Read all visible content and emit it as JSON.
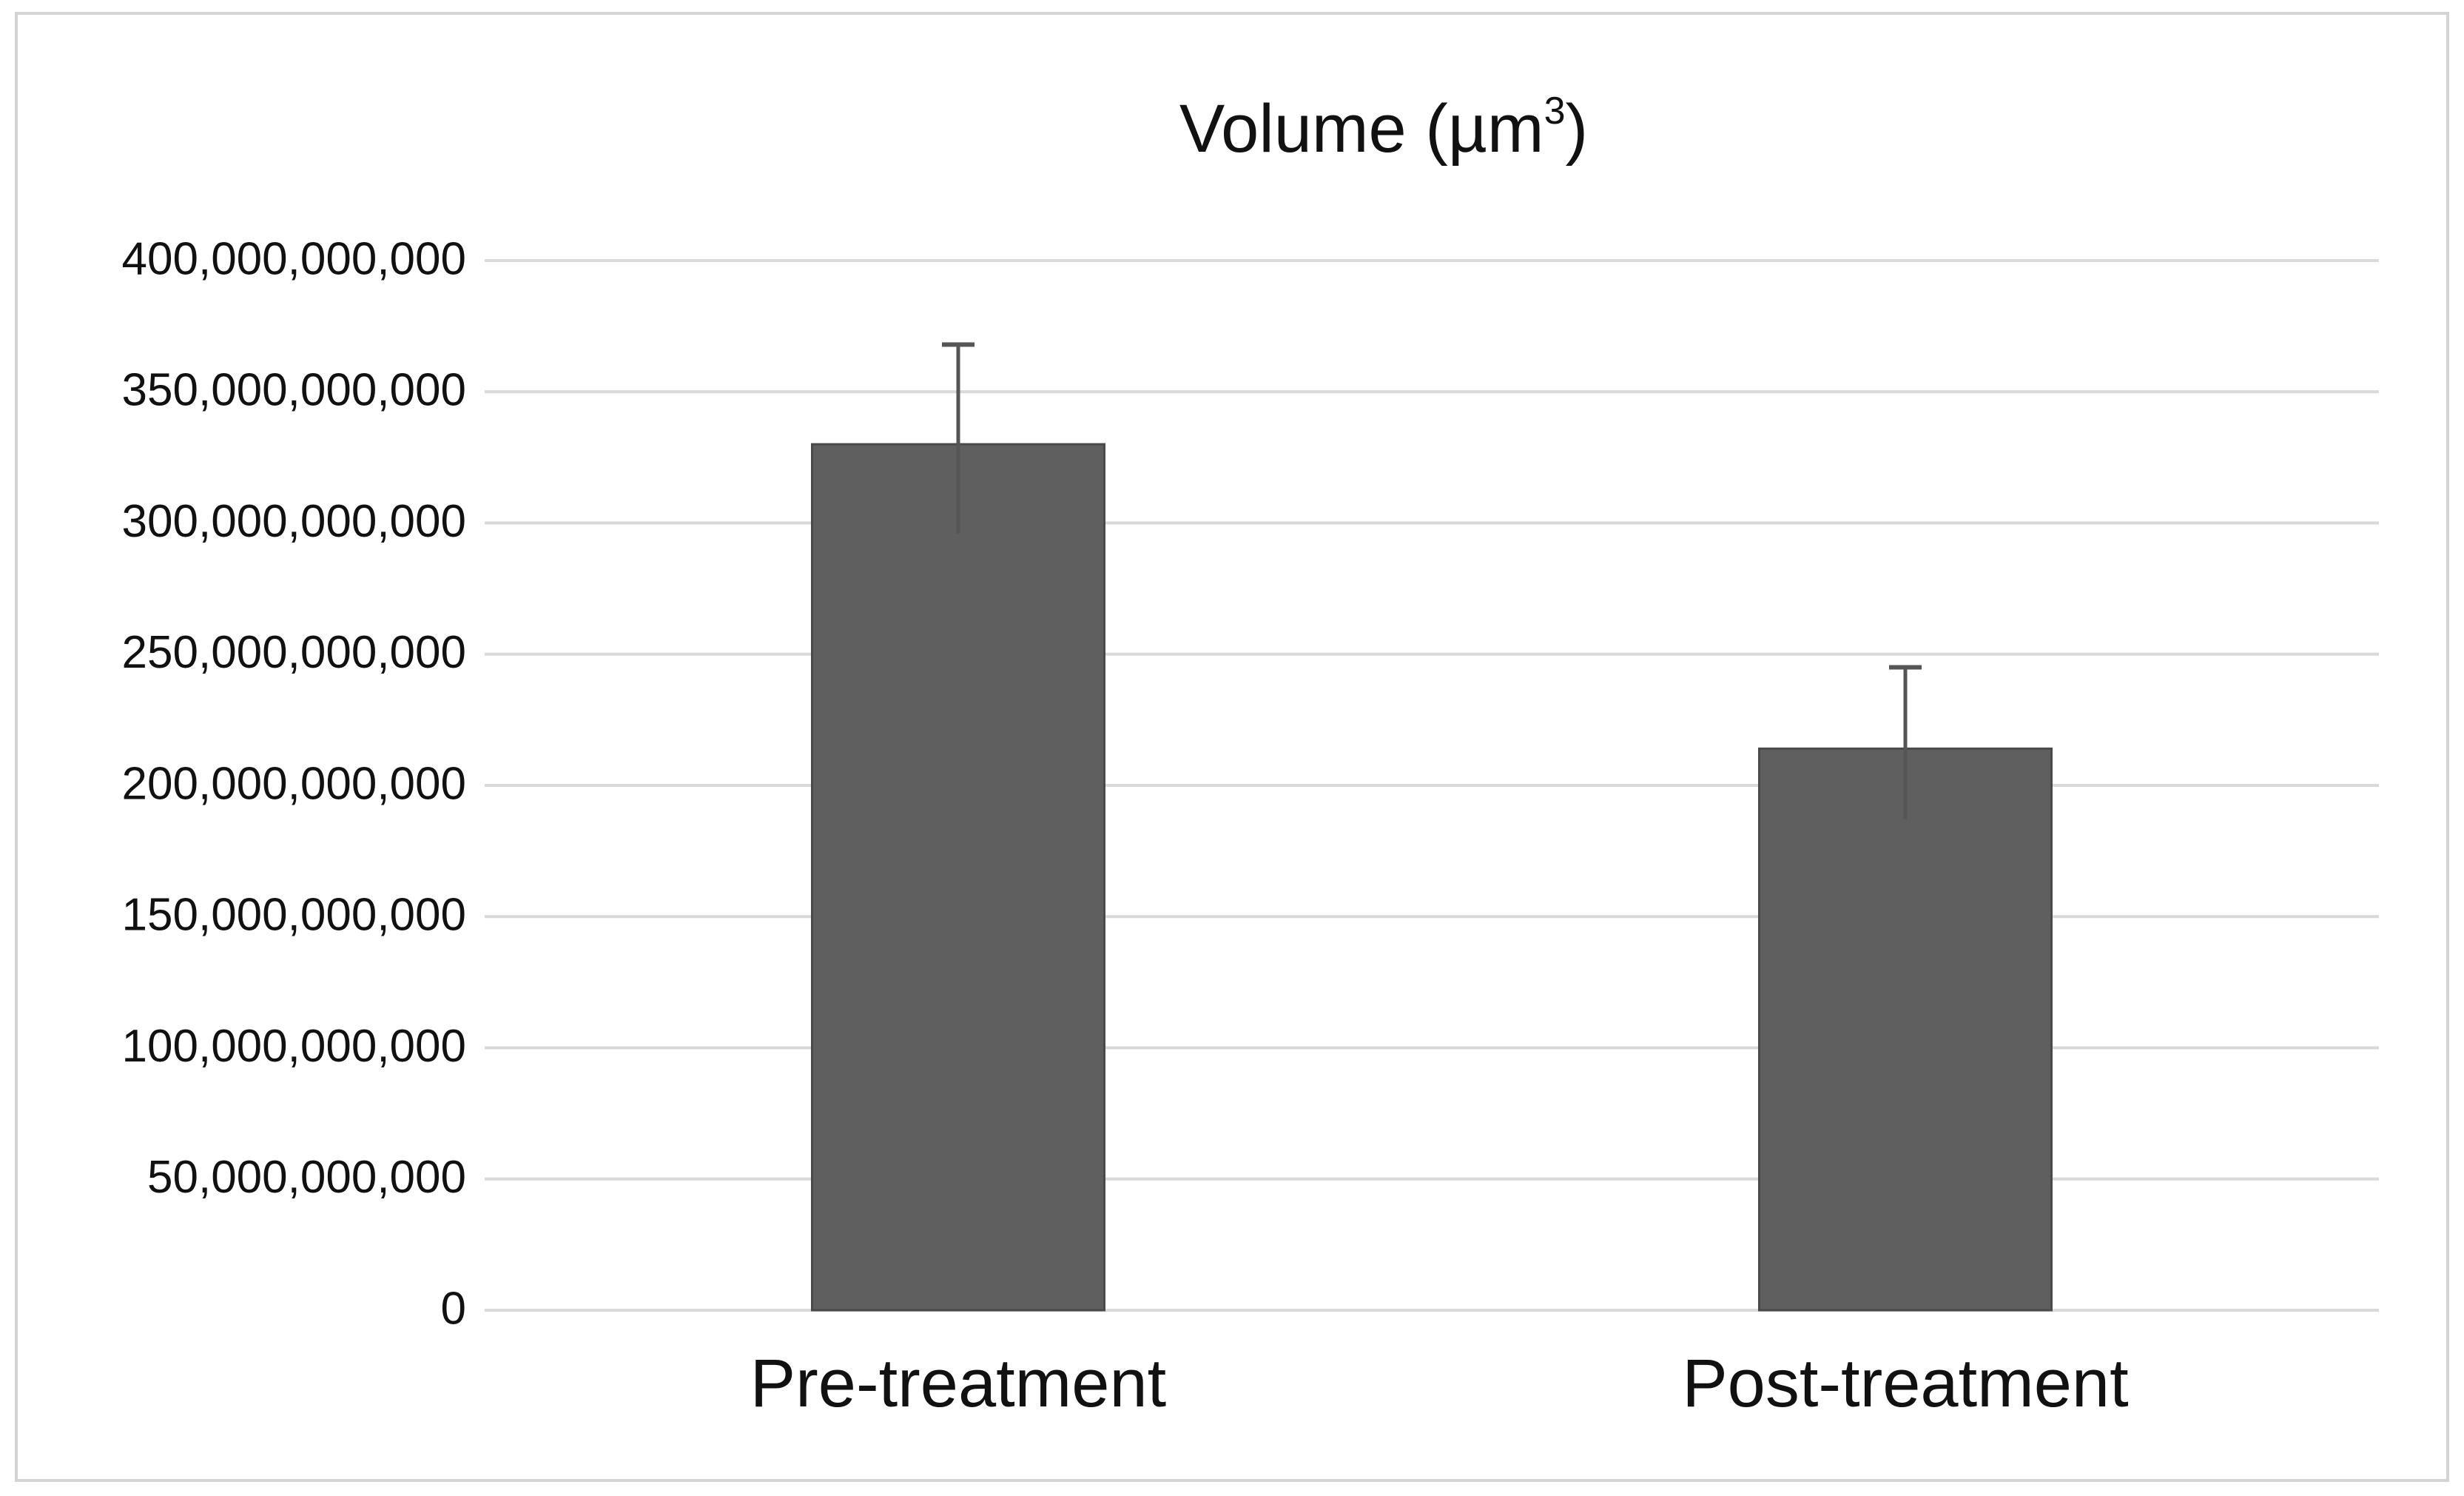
{
  "chart_data": {
    "type": "bar",
    "title": "Volume (µm",
    "title_superscript": "3",
    "title_suffix": ")",
    "categories": [
      "Pre-treatment",
      "Post-treatment"
    ],
    "values": [
      330000000000,
      214000000000
    ],
    "error_upper": [
      38000000000,
      31000000000
    ],
    "error_lower": [
      34000000000,
      27000000000
    ],
    "xlabel": "",
    "ylabel": "",
    "ylim": [
      0,
      400000000000
    ],
    "yticks": [
      0,
      50000000000,
      100000000000,
      150000000000,
      200000000000,
      250000000000,
      300000000000,
      350000000000,
      400000000000
    ],
    "ytick_labels": [
      "0",
      "50,000,000,000",
      "100,000,000,000",
      "150,000,000,000",
      "200,000,000,000",
      "250,000,000,000",
      "300,000,000,000",
      "350,000,000,000",
      "400,000,000,000"
    ],
    "grid": true,
    "legend": "none",
    "colors": {
      "bar": "#5f5f5f",
      "bar_edge": "#4a4a4a",
      "grid": "#d9d9d9",
      "error_bar": "#555555"
    }
  }
}
